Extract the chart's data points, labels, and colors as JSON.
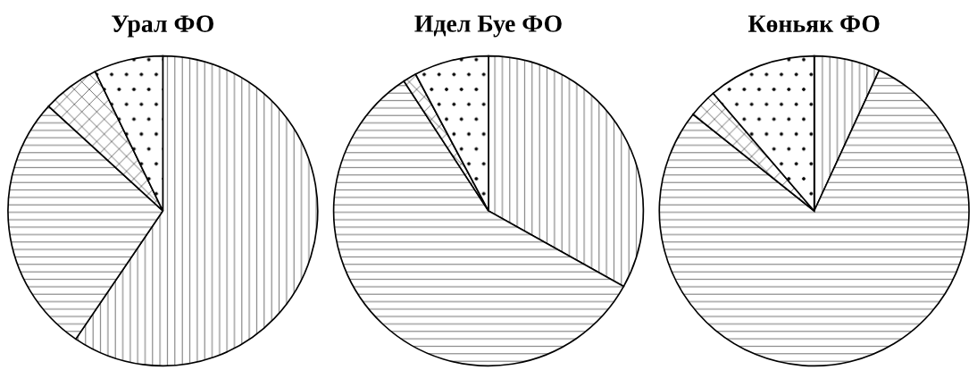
{
  "chart_data": [
    {
      "type": "pie",
      "title": "Урал ФО",
      "categories": [
        null,
        null,
        null,
        null
      ],
      "values": [
        59.5,
        27.3,
        6.0,
        7.2
      ],
      "colors": [
        "#000000",
        "#000000",
        "#000000",
        "#000000"
      ]
    },
    {
      "type": "pie",
      "title": "Идел Буе ФО",
      "categories": [
        null,
        null,
        null,
        null
      ],
      "values": [
        33.1,
        57.7,
        1.4,
        7.8
      ],
      "colors": [
        "#000000",
        "#000000",
        "#000000",
        "#000000"
      ]
    },
    {
      "type": "pie",
      "title": "Көньяк ФО",
      "categories": [
        null,
        null,
        null,
        null
      ],
      "values": [
        6.9,
        78.8,
        3.0,
        11.3
      ],
      "colors": [
        "#000000",
        "#000000",
        "#000000",
        "#000000"
      ]
    }
  ]
}
